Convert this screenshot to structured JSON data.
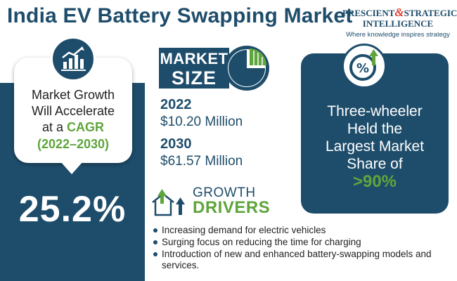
{
  "title": "India EV Battery Swapping Market",
  "logo": {
    "line1_a": "PRESCIENT",
    "line1_amp": "&",
    "line1_b": "STRATEGIC",
    "line2": "INTELLIGENCE",
    "tagline": "Where knowledge inspires strategy"
  },
  "growth": {
    "line1": "Market Growth",
    "line2": "Will Accelerate",
    "line3_prefix": "at a ",
    "line3_highlight": "CAGR",
    "period": "(2022–2030)",
    "cagr_value": "25.2%"
  },
  "market_size": {
    "label_top": "MARKET",
    "label_bottom": "SIZE",
    "entries": [
      {
        "year": "2022",
        "value": "$10.20 Million"
      },
      {
        "year": "2030",
        "value": "$61.57 Million"
      }
    ]
  },
  "share": {
    "line1": "Three-wheeler",
    "line2": "Held the",
    "line3": "Largest Market",
    "line4": "Share of",
    "value": ">90%"
  },
  "drivers": {
    "label_top": "GROWTH",
    "label_bottom": "DRIVERS",
    "items": [
      "Increasing demand for electric vehicles",
      "Surging focus on reducing the time for charging",
      "Introduction of new and enhanced battery-swapping models and services."
    ]
  },
  "colors": {
    "primary": "#1e4d6b",
    "accent": "#5fa53b",
    "logo_amp": "#e03c2f"
  },
  "icons": [
    "bar-chart-growth-icon",
    "pie-chart-icon",
    "percent-up-icon",
    "house-arrows-icon"
  ]
}
